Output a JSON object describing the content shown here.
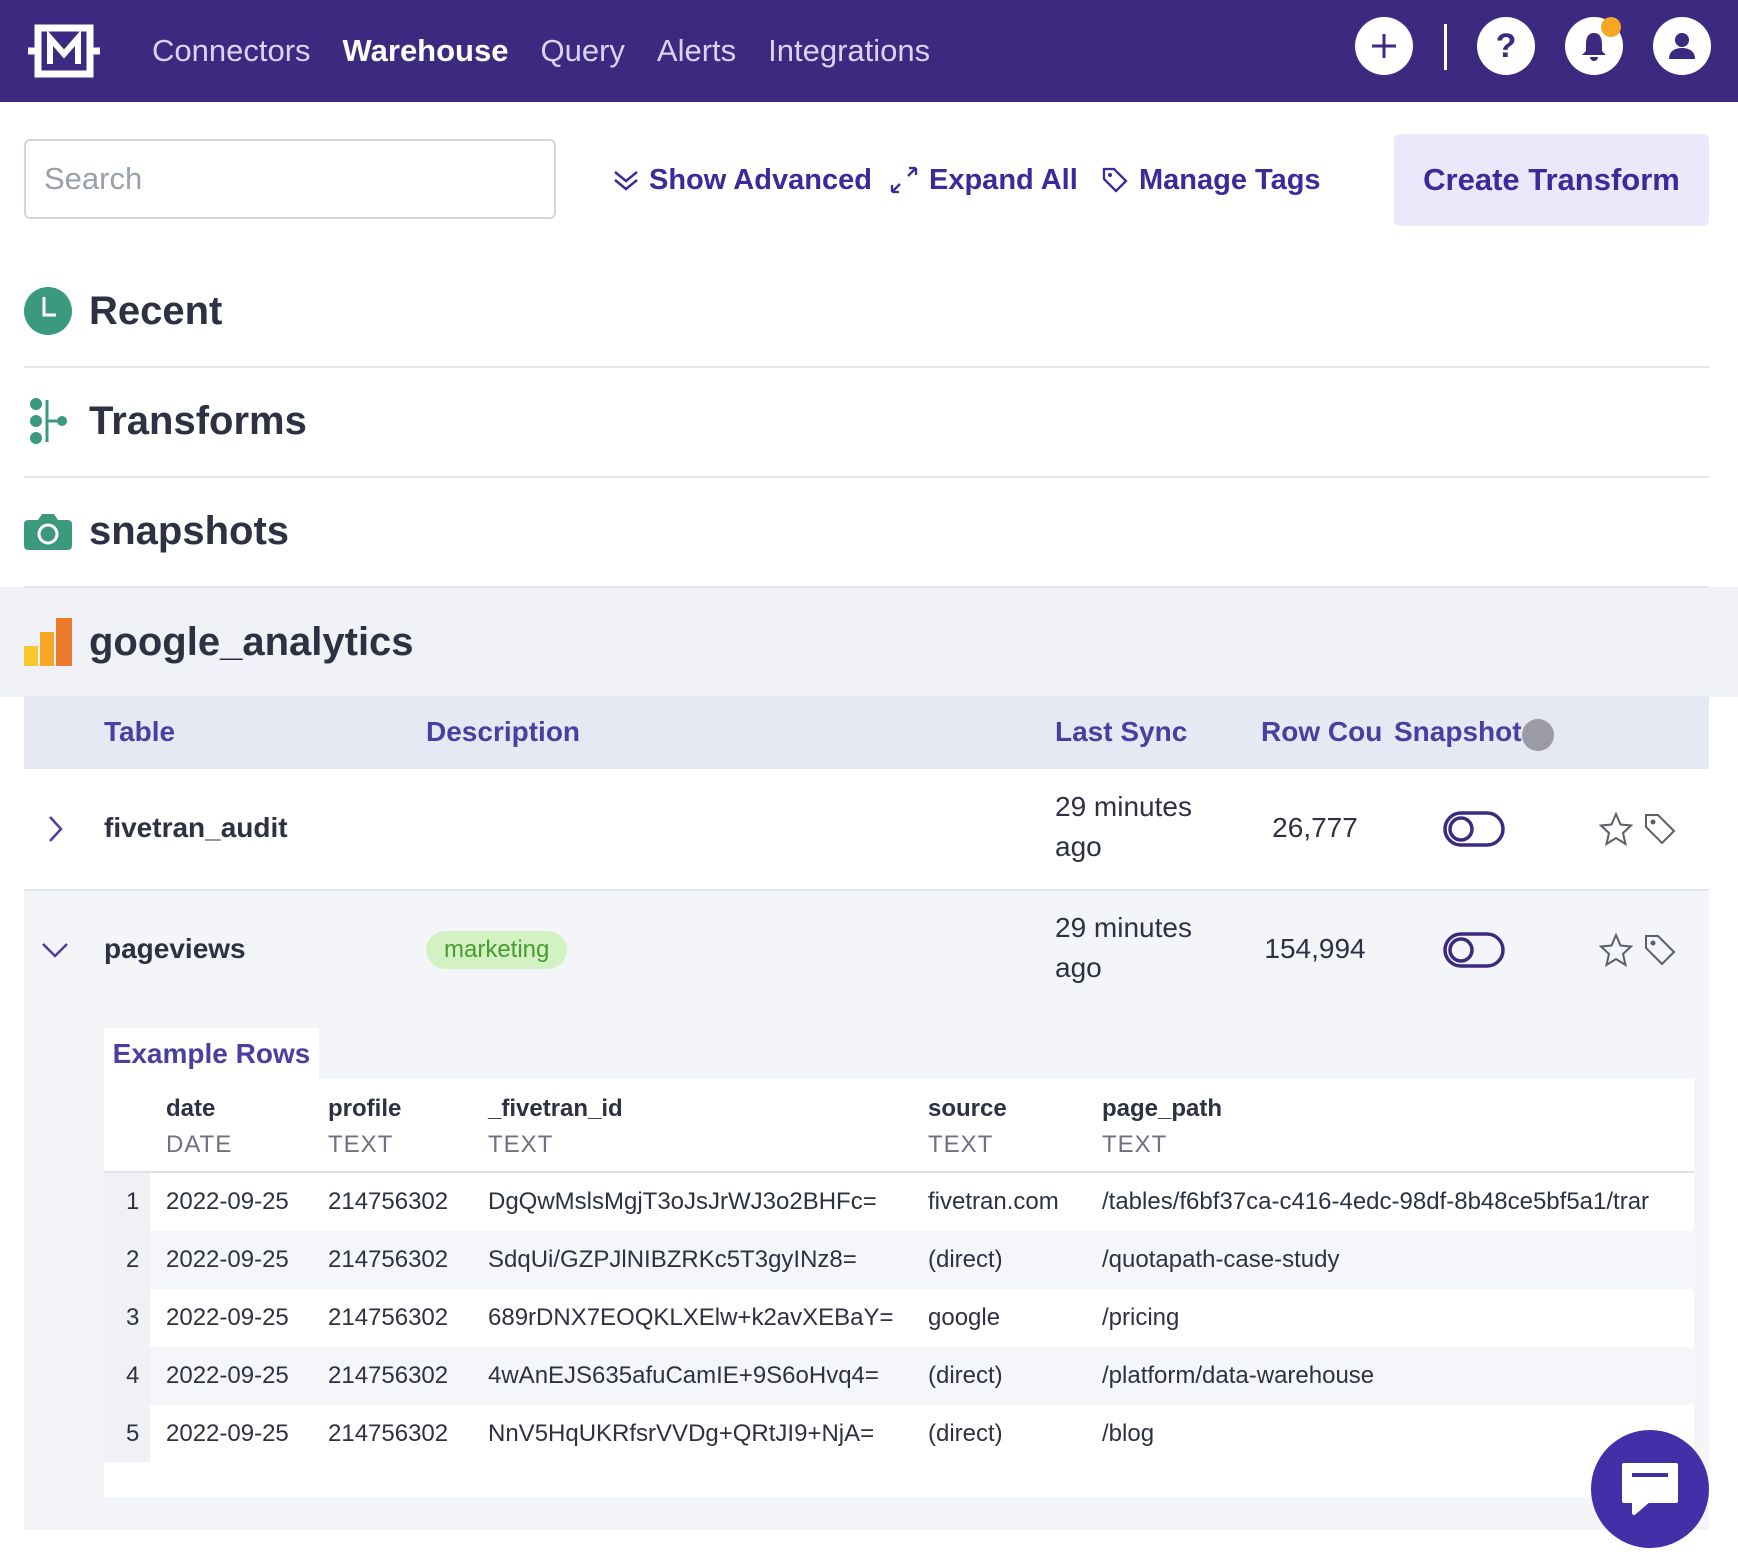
{
  "nav": {
    "items": [
      "Connectors",
      "Warehouse",
      "Query",
      "Alerts",
      "Integrations"
    ]
  },
  "toolbar": {
    "search_placeholder": "Search",
    "show_advanced": "Show Advanced",
    "expand_all": "Expand All",
    "manage_tags": "Manage Tags",
    "create_transform": "Create Transform"
  },
  "sections": [
    "Recent",
    "Transforms",
    "snapshots",
    "google_analytics"
  ],
  "table": {
    "headers": [
      "Table",
      "Description",
      "Last Sync",
      "Row Cou",
      "Snapshot"
    ],
    "rows": [
      {
        "name": "fivetran_audit",
        "last_sync": "29 minutes ago",
        "row_count": "26,777"
      },
      {
        "name": "pageviews",
        "tag": "marketing",
        "last_sync": "29 minutes ago",
        "row_count": "154,994"
      }
    ]
  },
  "example": {
    "title": "Example Rows",
    "columns": [
      {
        "name": "date",
        "type": "DATE"
      },
      {
        "name": "profile",
        "type": "TEXT"
      },
      {
        "name": "_fivetran_id",
        "type": "TEXT"
      },
      {
        "name": "source",
        "type": "TEXT"
      },
      {
        "name": "page_path",
        "type": "TEXT"
      }
    ],
    "rows": [
      [
        "1",
        "2022-09-25",
        "214756302",
        "DgQwMslsMgjT3oJsJrWJ3o2BHFc=",
        "fivetran.com",
        "/tables/f6bf37ca-c416-4edc-98df-8b48ce5bf5a1/trar"
      ],
      [
        "2",
        "2022-09-25",
        "214756302",
        "SdqUi/GZPJlNIBZRKc5T3gyINz8=",
        "(direct)",
        "/quotapath-case-study"
      ],
      [
        "3",
        "2022-09-25",
        "214756302",
        "689rDNX7EOQKLXElw+k2avXEBaY=",
        "google",
        "/pricing"
      ],
      [
        "4",
        "2022-09-25",
        "214756302",
        "4wAnEJS635afuCamIE+9S6oHvq4=",
        "(direct)",
        "/platform/data-warehouse"
      ],
      [
        "5",
        "2022-09-25",
        "214756302",
        "NnV5HqUKRfsrVVDg+QRtJI9+NjA=",
        "(direct)",
        "/blog"
      ]
    ]
  }
}
